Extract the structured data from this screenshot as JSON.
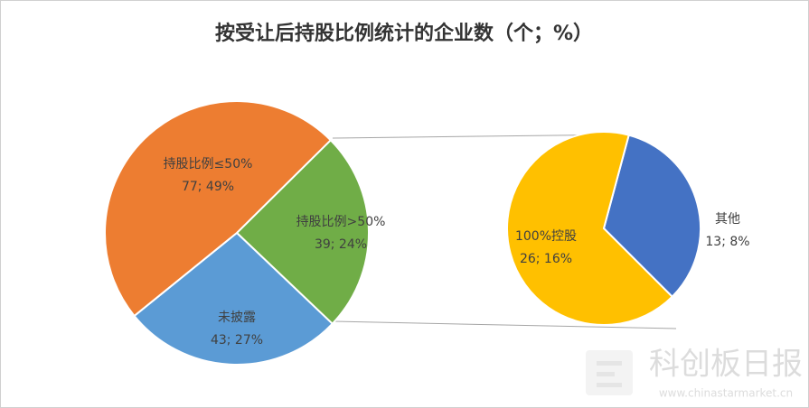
{
  "chart_data": [
    {
      "type": "pie",
      "title": "按受让后持股比例统计的企业数（个；%）",
      "categories": [
        "持股比例>50%",
        "未披露",
        "持股比例≤50%"
      ],
      "values": [
        39,
        43,
        77
      ],
      "value_labels": [
        "39; 24%",
        "43; 27%",
        "77; 49%"
      ],
      "colors": [
        "#70AD47",
        "#5B9BD5",
        "#ED7D31"
      ]
    },
    {
      "type": "pie",
      "categories": [
        "其他",
        "100%控股"
      ],
      "values": [
        13,
        26
      ],
      "value_labels": [
        "13; 8%",
        "26; 16%"
      ],
      "colors": [
        "#4472C4",
        "#FFC000"
      ]
    }
  ],
  "watermark": {
    "name": "科创板日报",
    "url": "www.chinastarmarket.cn"
  }
}
